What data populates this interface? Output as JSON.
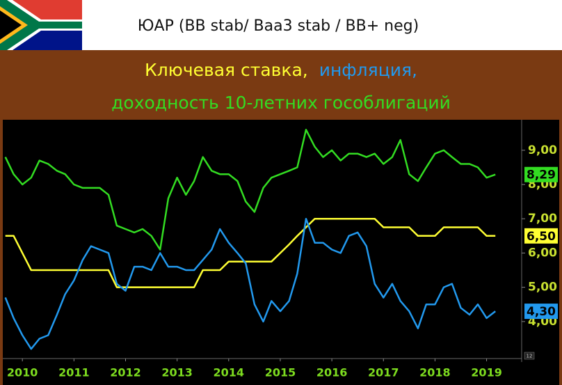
{
  "chart_data": {
    "type": "line",
    "title": "ЮАР (BB stab/ Baa3 stab / BB+ neg)",
    "corner_label": "12",
    "x": [
      2009.67,
      2009.83,
      2010.0,
      2010.17,
      2010.33,
      2010.5,
      2010.67,
      2010.83,
      2011.0,
      2011.17,
      2011.33,
      2011.5,
      2011.67,
      2011.83,
      2012.0,
      2012.17,
      2012.33,
      2012.5,
      2012.67,
      2012.83,
      2013.0,
      2013.17,
      2013.33,
      2013.5,
      2013.67,
      2013.83,
      2014.0,
      2014.17,
      2014.33,
      2014.5,
      2014.67,
      2014.83,
      2015.0,
      2015.17,
      2015.33,
      2015.5,
      2015.67,
      2015.83,
      2016.0,
      2016.17,
      2016.33,
      2016.5,
      2016.67,
      2016.83,
      2017.0,
      2017.17,
      2017.33,
      2017.5,
      2017.67,
      2017.83,
      2018.0,
      2018.17,
      2018.33,
      2018.5,
      2018.67,
      2018.83,
      2019.0,
      2019.17
    ],
    "xlim": [
      2009.62,
      2019.68
    ],
    "xticks": [
      2010,
      2011,
      2012,
      2013,
      2014,
      2015,
      2016,
      2017,
      2018,
      2019
    ],
    "ylim": [
      2.92,
      9.89
    ],
    "yticks": [
      {
        "value": 4,
        "label": "4,00"
      },
      {
        "value": 5,
        "label": "5,00"
      },
      {
        "value": 6,
        "label": "6,00"
      },
      {
        "value": 7,
        "label": "7,00"
      },
      {
        "value": 8,
        "label": "8,00"
      },
      {
        "value": 9,
        "label": "9,00"
      }
    ],
    "grid": false,
    "series": [
      {
        "name": "Ключевая ставка,",
        "color": "#ffff33",
        "values": [
          6.5,
          6.5,
          6.0,
          5.5,
          5.5,
          5.5,
          5.5,
          5.5,
          5.5,
          5.5,
          5.5,
          5.5,
          5.5,
          5.0,
          5.0,
          5.0,
          5.0,
          5.0,
          5.0,
          5.0,
          5.0,
          5.0,
          5.0,
          5.5,
          5.5,
          5.5,
          5.75,
          5.75,
          5.75,
          5.75,
          5.75,
          5.75,
          6.0,
          6.25,
          6.5,
          6.75,
          7.0,
          7.0,
          7.0,
          7.0,
          7.0,
          7.0,
          7.0,
          7.0,
          6.75,
          6.75,
          6.75,
          6.75,
          6.5,
          6.5,
          6.5,
          6.75,
          6.75,
          6.75,
          6.75,
          6.75,
          6.5,
          6.5
        ],
        "value_labels": [
          null,
          null,
          null,
          null,
          null,
          null,
          null,
          null,
          null,
          null,
          null,
          null,
          null,
          null,
          null,
          null,
          null,
          null,
          null,
          null,
          null,
          null,
          null,
          null,
          null,
          null,
          null,
          null,
          null,
          null,
          null,
          null,
          null,
          null,
          null,
          null,
          null,
          null,
          null,
          null,
          null,
          null,
          null,
          null,
          null,
          null,
          null,
          null,
          null,
          null,
          null,
          null,
          null,
          null,
          null,
          null,
          null,
          "6,50"
        ]
      },
      {
        "name": "инфляция,",
        "color": "#2299ee",
        "values": [
          4.7,
          4.1,
          3.6,
          3.2,
          3.5,
          3.6,
          4.2,
          4.8,
          5.2,
          5.8,
          6.2,
          6.1,
          6.0,
          5.1,
          4.9,
          5.6,
          5.6,
          5.5,
          6.0,
          5.6,
          5.6,
          5.5,
          5.5,
          5.8,
          6.1,
          6.7,
          6.3,
          6.0,
          5.7,
          4.5,
          4.0,
          4.6,
          4.3,
          4.6,
          5.4,
          7.0,
          6.3,
          6.3,
          6.1,
          6.0,
          6.5,
          6.6,
          6.2,
          5.1,
          4.7,
          5.1,
          4.6,
          4.3,
          3.8,
          4.5,
          4.5,
          5.0,
          5.1,
          4.4,
          4.2,
          4.5,
          4.1,
          4.3
        ],
        "value_labels": [
          null,
          null,
          null,
          null,
          null,
          null,
          null,
          null,
          null,
          null,
          null,
          null,
          null,
          null,
          null,
          null,
          null,
          null,
          null,
          null,
          null,
          null,
          null,
          null,
          null,
          null,
          null,
          null,
          null,
          null,
          null,
          null,
          null,
          null,
          null,
          null,
          null,
          null,
          null,
          null,
          null,
          null,
          null,
          null,
          null,
          null,
          null,
          null,
          null,
          null,
          null,
          null,
          null,
          null,
          null,
          null,
          null,
          "4,30"
        ]
      },
      {
        "name": "доходность 10-летних гособлигаций",
        "color": "#33dd22",
        "values": [
          8.8,
          8.3,
          8.0,
          8.2,
          8.7,
          8.6,
          8.4,
          8.3,
          8.0,
          7.9,
          7.9,
          7.9,
          7.7,
          6.8,
          6.7,
          6.6,
          6.7,
          6.5,
          6.1,
          7.6,
          8.2,
          7.7,
          8.1,
          8.8,
          8.4,
          8.3,
          8.3,
          8.1,
          7.5,
          7.2,
          7.9,
          8.2,
          8.3,
          8.4,
          8.5,
          9.6,
          9.1,
          8.8,
          9.0,
          8.7,
          8.9,
          8.9,
          8.8,
          8.9,
          8.6,
          8.8,
          9.3,
          8.3,
          8.1,
          8.5,
          8.9,
          9.0,
          8.8,
          8.6,
          8.6,
          8.5,
          8.2,
          8.29
        ],
        "value_labels": [
          null,
          null,
          null,
          null,
          null,
          null,
          null,
          null,
          null,
          null,
          null,
          null,
          null,
          null,
          null,
          null,
          null,
          null,
          null,
          null,
          null,
          null,
          null,
          null,
          null,
          null,
          null,
          null,
          null,
          null,
          null,
          null,
          null,
          null,
          null,
          null,
          null,
          null,
          null,
          null,
          null,
          null,
          null,
          null,
          null,
          null,
          null,
          null,
          null,
          null,
          null,
          null,
          null,
          null,
          null,
          null,
          null,
          "8,29"
        ]
      }
    ]
  }
}
